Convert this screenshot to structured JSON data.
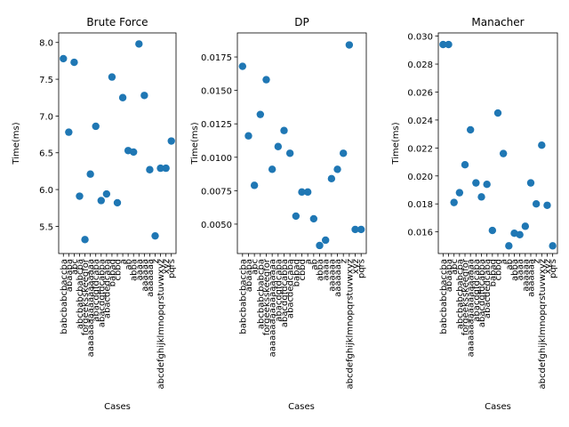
{
  "chart_data": [
    {
      "type": "scatter",
      "title": "Brute Force",
      "xlabel": "Cases",
      "ylabel": "Time(ms)",
      "ylim": [
        5.13,
        8.13
      ],
      "yticks": [
        "5.5",
        "6.0",
        "6.5",
        "7.0",
        "7.5",
        "8.0"
      ],
      "ytick_values": [
        5.5,
        6.0,
        6.5,
        7.0,
        7.5,
        8.0
      ],
      "color": "#1f77b4",
      "grid": false,
      "categories": [
        "babcbabcbaccba",
        "abaaba",
        "abc",
        "abcbabcbabcba",
        "forgeeksskeegfor",
        "aaaaaaaaaaaaaaaaaa",
        "abacdgfdcaba",
        "abacdgfdcabba",
        "abacdedcaba",
        "babad",
        "cbbd",
        "a",
        "ab",
        "abba",
        "aaaa",
        "aaaaaa",
        "aaaaaaa",
        "z",
        "abcdefghijklmnopqrstuvwxyz",
        "xyz",
        "pqrs"
      ],
      "values": [
        7.78,
        6.78,
        7.73,
        5.91,
        5.32,
        6.21,
        6.86,
        5.85,
        5.94,
        7.53,
        5.82,
        7.25,
        6.53,
        6.51,
        7.98,
        7.28,
        6.27,
        5.37,
        6.29,
        6.29,
        6.66
      ]
    },
    {
      "type": "scatter",
      "title": "DP",
      "xlabel": "Cases",
      "ylabel": "Time(ms)",
      "ylim": [
        0.0028,
        0.0193
      ],
      "yticks": [
        "0.0050",
        "0.0075",
        "0.0100",
        "0.0125",
        "0.0150",
        "0.0175"
      ],
      "ytick_values": [
        0.005,
        0.0075,
        0.01,
        0.0125,
        0.015,
        0.0175
      ],
      "color": "#1f77b4",
      "grid": false,
      "categories": [
        "babcbabcbaccba",
        "abaaba",
        "abc",
        "abcbabcbabcba",
        "forgeeksskeegfor",
        "aaaaaaaaaaaaaaaaaa",
        "abacdgfdcaba",
        "abacdgfdcabba",
        "abacdedcaba",
        "babad",
        "cbbd",
        "a",
        "ab",
        "abba",
        "aaaa",
        "aaaaaa",
        "aaaaaaa",
        "z",
        "abcdefghijklmnopqrstuvwxyz",
        "xyz",
        "pqrs"
      ],
      "values": [
        0.0168,
        0.0116,
        0.0079,
        0.0132,
        0.0158,
        0.0091,
        0.0108,
        0.012,
        0.0103,
        0.0056,
        0.0074,
        0.0074,
        0.0054,
        0.0034,
        0.0038,
        0.0084,
        0.0091,
        0.0103,
        0.0184,
        0.0046,
        0.0046
      ]
    },
    {
      "type": "scatter",
      "title": "Manacher",
      "xlabel": "Cases",
      "ylabel": "Time(ms)",
      "ylim": [
        0.01445,
        0.03023
      ],
      "yticks": [
        "0.016",
        "0.018",
        "0.020",
        "0.022",
        "0.024",
        "0.026",
        "0.028",
        "0.030"
      ],
      "ytick_values": [
        0.016,
        0.018,
        0.02,
        0.022,
        0.024,
        0.026,
        0.028,
        0.03
      ],
      "color": "#1f77b4",
      "grid": false,
      "categories": [
        "babcbabcbaccba",
        "abaaba",
        "abc",
        "abcbabcbabcba",
        "forgeeksskeegfor",
        "aaaaaaaaaaaaaaaaaa",
        "abacdgfdcaba",
        "abacdgfdcabba",
        "abacdedcaba",
        "babad",
        "cbbd",
        "a",
        "ab",
        "abba",
        "aaaa",
        "aaaaaa",
        "aaaaaaa",
        "z",
        "abcdefghijklmnopqrstuvwxyz",
        "xyz",
        "pqrs"
      ],
      "values": [
        0.0294,
        0.0294,
        0.0181,
        0.0188,
        0.0208,
        0.0233,
        0.0195,
        0.0185,
        0.0194,
        0.0161,
        0.0245,
        0.0216,
        0.015,
        0.0159,
        0.0158,
        0.0164,
        0.0195,
        0.018,
        0.0222,
        0.0179,
        0.015
      ]
    }
  ]
}
